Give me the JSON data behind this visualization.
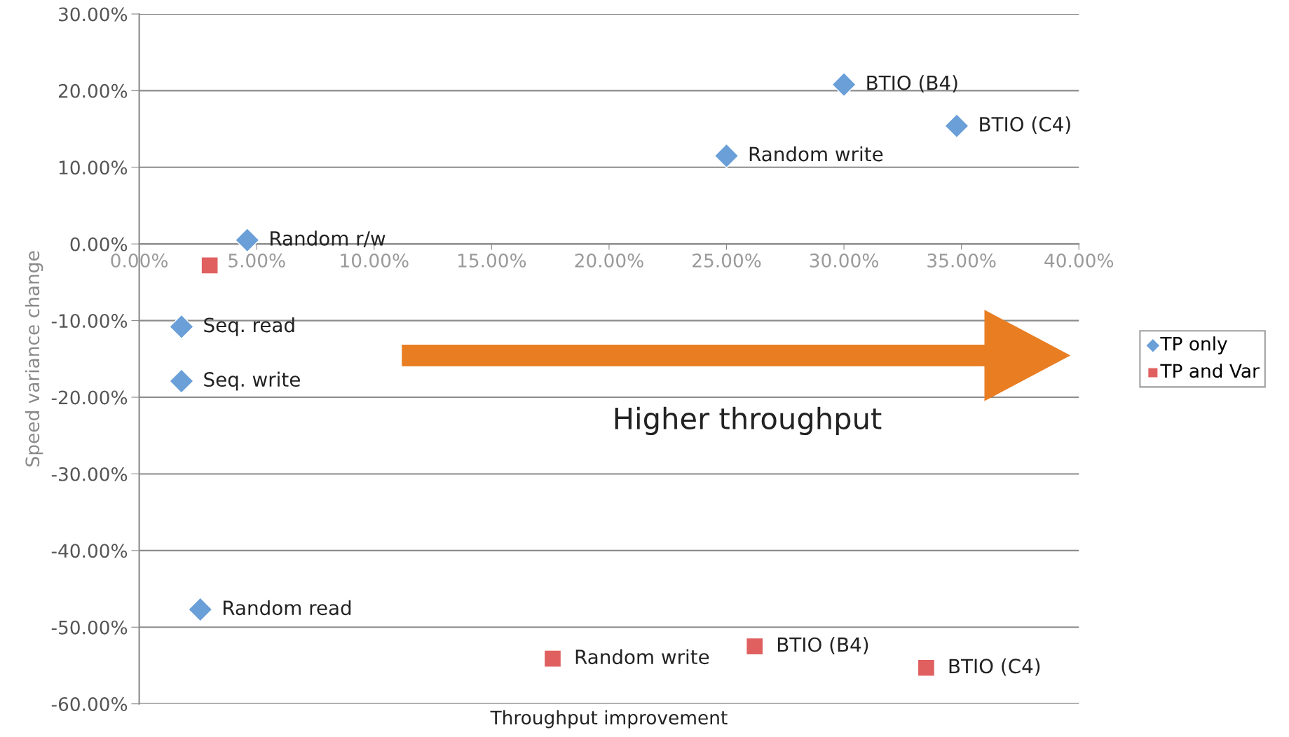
{
  "chart_data": {
    "type": "scatter",
    "xlabel": "Throughput improvement",
    "ylabel": "Speed variance change",
    "xlim": [
      0,
      40
    ],
    "xticks": [
      {
        "value": 0,
        "label": "0.00%"
      },
      {
        "value": 5,
        "label": "5.00%"
      },
      {
        "value": 10,
        "label": "10.00%"
      },
      {
        "value": 15,
        "label": "15.00%"
      },
      {
        "value": 20,
        "label": "20.00%"
      },
      {
        "value": 25,
        "label": "25.00%"
      },
      {
        "value": 30,
        "label": "30.00%"
      },
      {
        "value": 35,
        "label": "35.00%"
      },
      {
        "value": 40,
        "label": "40.00%"
      }
    ],
    "ylim": [
      -60,
      30
    ],
    "yticks": [
      {
        "value": -60,
        "label": "-60.00%"
      },
      {
        "value": -50,
        "label": "-50.00%"
      },
      {
        "value": -40,
        "label": "-40.00%"
      },
      {
        "value": -30,
        "label": "-30.00%"
      },
      {
        "value": -20,
        "label": "-20.00%"
      },
      {
        "value": -10,
        "label": "-10.00%"
      },
      {
        "value": 0,
        "label": "0.00%"
      },
      {
        "value": 10,
        "label": "10.00%"
      },
      {
        "value": 20,
        "label": "20.00%"
      },
      {
        "value": 30,
        "label": "30.00%"
      }
    ],
    "grid": "y",
    "legend": "right",
    "series": [
      {
        "name": "TP only",
        "color": "#6a9fd8",
        "marker": "diamond",
        "x": [
          30.0,
          34.8,
          25.0,
          4.6,
          1.8,
          1.8,
          2.6
        ],
        "values": [
          20.8,
          15.4,
          11.5,
          0.5,
          -10.8,
          -17.9,
          -47.7
        ]
      },
      {
        "name": "TP and Var",
        "color": "#e06060",
        "marker": "square",
        "x": [
          3.0,
          17.6,
          26.2,
          33.5
        ],
        "values": [
          -2.8,
          -54.1,
          -52.5,
          -55.3
        ]
      }
    ],
    "annotations": [
      {
        "text": "BTIO (B4)",
        "x": 30.0,
        "y": 20.8
      },
      {
        "text": "BTIO (C4)",
        "x": 34.8,
        "y": 15.4
      },
      {
        "text": "Random write",
        "x": 25.0,
        "y": 11.5
      },
      {
        "text": "Random r/w",
        "x": 4.6,
        "y": 0.5
      },
      {
        "text": "Seq. read",
        "x": 1.8,
        "y": -10.8
      },
      {
        "text": "Seq. write",
        "x": 1.8,
        "y": -17.9
      },
      {
        "text": "Random read",
        "x": 2.6,
        "y": -47.7
      },
      {
        "text": "Random write",
        "x": 17.6,
        "y": -54.1
      },
      {
        "text": "BTIO (B4)",
        "x": 26.2,
        "y": -52.5
      },
      {
        "text": "BTIO (C4)",
        "x": 33.5,
        "y": -55.3
      },
      "Higher throughput"
    ]
  }
}
